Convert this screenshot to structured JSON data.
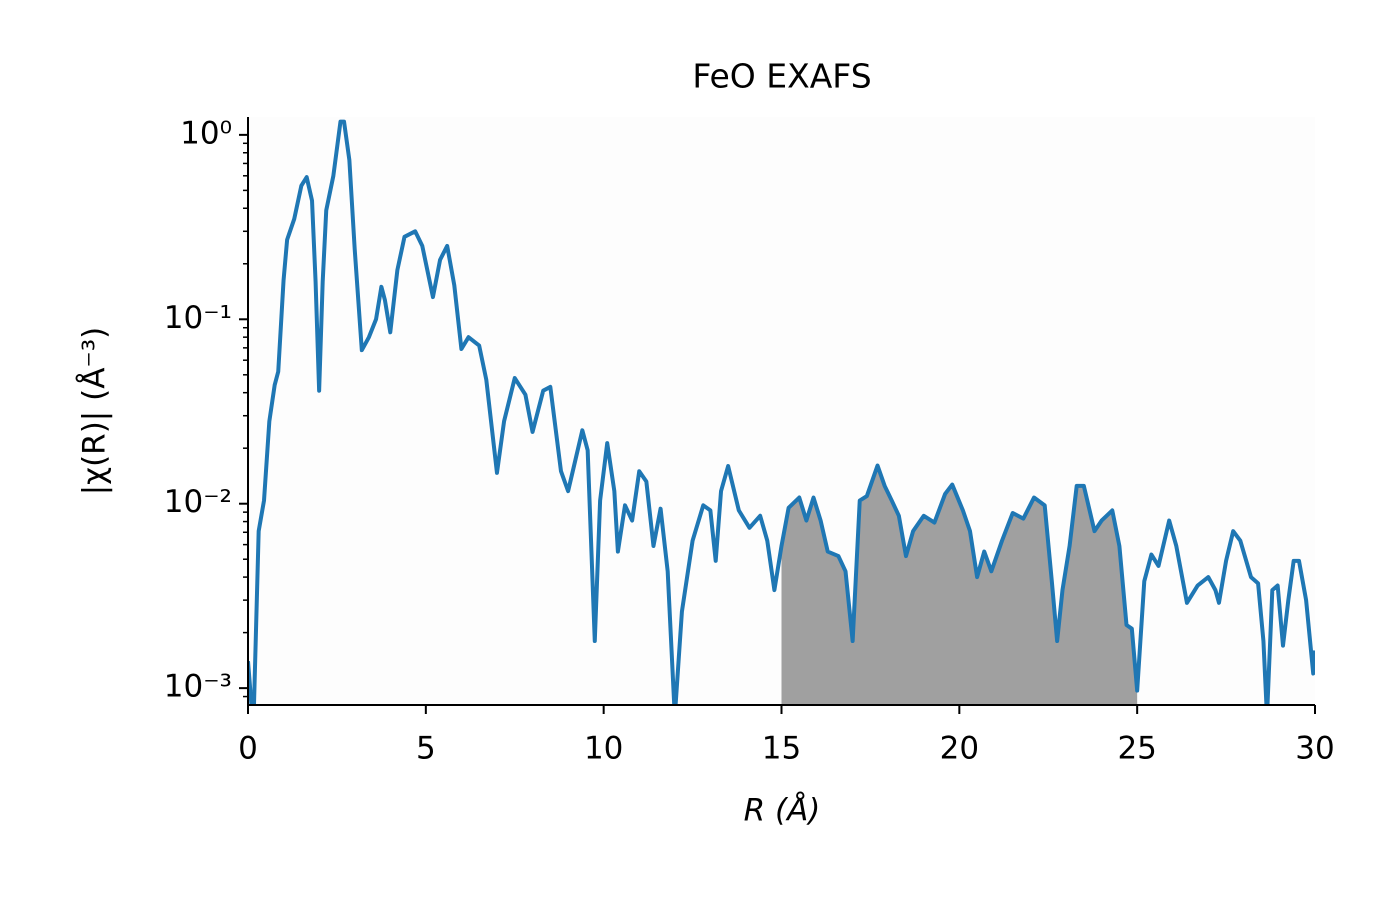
{
  "chart_data": {
    "type": "line",
    "title": "FeO EXAFS",
    "x_label": "R (Å)",
    "y_label": "|χ(R)| (Å⁻³)",
    "log_y": true,
    "x": [
      0.0,
      0.15,
      0.3,
      0.45,
      0.6,
      0.75,
      0.85,
      1.0,
      1.1,
      1.3,
      1.5,
      1.65,
      1.8,
      1.9,
      2.0,
      2.1,
      2.2,
      2.4,
      2.6,
      2.7,
      2.85,
      3.0,
      3.2,
      3.4,
      3.6,
      3.75,
      3.85,
      4.0,
      4.2,
      4.4,
      4.7,
      4.9,
      5.2,
      5.4,
      5.6,
      5.8,
      6.0,
      6.2,
      6.5,
      6.7,
      7.0,
      7.2,
      7.5,
      7.8,
      8.0,
      8.3,
      8.5,
      8.8,
      9.0,
      9.2,
      9.4,
      9.55,
      9.75,
      9.9,
      10.1,
      10.3,
      10.4,
      10.6,
      10.8,
      11.0,
      11.2,
      11.4,
      11.6,
      11.8,
      12.0,
      12.2,
      12.5,
      12.8,
      13.0,
      13.15,
      13.3,
      13.5,
      13.8,
      14.1,
      14.4,
      14.6,
      14.8,
      15.0,
      15.2,
      15.5,
      15.7,
      15.9,
      16.1,
      16.3,
      16.6,
      16.8,
      17.0,
      17.2,
      17.4,
      17.7,
      17.9,
      18.1,
      18.3,
      18.5,
      18.7,
      19.0,
      19.3,
      19.6,
      19.8,
      20.1,
      20.3,
      20.5,
      20.7,
      20.9,
      21.2,
      21.5,
      21.8,
      22.1,
      22.4,
      22.6,
      22.75,
      22.9,
      23.1,
      23.3,
      23.5,
      23.8,
      24.0,
      24.3,
      24.5,
      24.7,
      24.85,
      25.0,
      25.2,
      25.4,
      25.6,
      25.9,
      26.1,
      26.4,
      26.7,
      27.0,
      27.2,
      27.3,
      27.5,
      27.7,
      27.9,
      28.2,
      28.4,
      28.55,
      28.65,
      28.8,
      28.95,
      29.1,
      29.25,
      29.4,
      29.55,
      29.75,
      29.95,
      30.0
    ],
    "series": [
      {
        "color": "#1f77b4",
        "values": [
          0.0014,
          0.0006,
          0.0071,
          0.0104,
          0.028,
          0.044,
          0.052,
          0.163,
          0.27,
          0.35,
          0.53,
          0.59,
          0.44,
          0.16,
          0.041,
          0.16,
          0.39,
          0.6,
          1.18,
          1.18,
          0.73,
          0.24,
          0.068,
          0.08,
          0.1,
          0.15,
          0.127,
          0.085,
          0.185,
          0.28,
          0.3,
          0.25,
          0.132,
          0.21,
          0.25,
          0.153,
          0.069,
          0.08,
          0.072,
          0.047,
          0.0147,
          0.028,
          0.048,
          0.039,
          0.0245,
          0.041,
          0.043,
          0.015,
          0.0117,
          0.0171,
          0.025,
          0.0195,
          0.0018,
          0.0104,
          0.0213,
          0.0117,
          0.0055,
          0.0098,
          0.0081,
          0.015,
          0.0132,
          0.0059,
          0.0094,
          0.0043,
          0.0007,
          0.0026,
          0.0063,
          0.0098,
          0.0092,
          0.0049,
          0.0117,
          0.016,
          0.0092,
          0.0074,
          0.0086,
          0.0063,
          0.0034,
          0.0059,
          0.0095,
          0.0108,
          0.0081,
          0.0108,
          0.0081,
          0.0055,
          0.0052,
          0.0043,
          0.0018,
          0.0104,
          0.011,
          0.0161,
          0.0125,
          0.0104,
          0.0086,
          0.0052,
          0.0071,
          0.0086,
          0.0079,
          0.0113,
          0.0127,
          0.0092,
          0.0071,
          0.004,
          0.0055,
          0.0043,
          0.0063,
          0.0089,
          0.0083,
          0.0108,
          0.0098,
          0.0038,
          0.0018,
          0.0034,
          0.0059,
          0.0125,
          0.0125,
          0.0071,
          0.0081,
          0.0092,
          0.0059,
          0.0022,
          0.0021,
          0.00097,
          0.0038,
          0.0053,
          0.0046,
          0.0081,
          0.0059,
          0.0029,
          0.0036,
          0.004,
          0.0034,
          0.0029,
          0.0049,
          0.0071,
          0.0063,
          0.004,
          0.0037,
          0.0018,
          0.0007,
          0.0034,
          0.0036,
          0.0017,
          0.003,
          0.0049,
          0.0049,
          0.003,
          0.0012,
          0.0016
        ]
      }
    ],
    "shade": {
      "range": [
        15,
        25
      ],
      "color": "#a0a0a0"
    },
    "xlim": [
      0,
      30
    ],
    "xticks": [
      0,
      5,
      10,
      15,
      20,
      25,
      30
    ],
    "ylim": [
      0.00081,
      1.25
    ],
    "yticks": [
      {
        "value": 0.001,
        "label": "10⁻³"
      },
      {
        "value": 0.01,
        "label": "10⁻²"
      },
      {
        "value": 0.1,
        "label": "10⁻¹"
      },
      {
        "value": 1,
        "label": "10⁰"
      }
    ],
    "yminorticks": [
      0.0009,
      0.002,
      0.003,
      0.004,
      0.005,
      0.006,
      0.007,
      0.008,
      0.009,
      0.02,
      0.03,
      0.04,
      0.05,
      0.06,
      0.07,
      0.08,
      0.09,
      0.2,
      0.3,
      0.4,
      0.5,
      0.6,
      0.7,
      0.8,
      0.9
    ],
    "background": "#fdfdfd"
  }
}
